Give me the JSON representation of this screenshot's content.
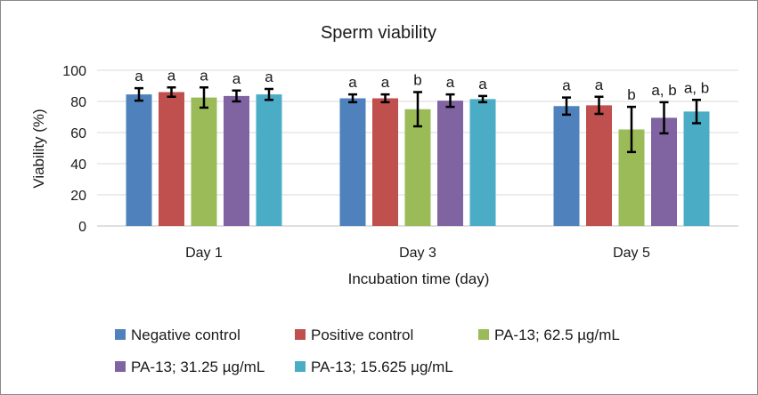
{
  "chart_data": {
    "type": "bar",
    "title": "Sperm viability",
    "xlabel": "Incubation time (day)",
    "ylabel": "Viability (%)",
    "ylim": [
      0,
      100
    ],
    "yticks": [
      0,
      20,
      40,
      60,
      80,
      100
    ],
    "grid": true,
    "legend_position": "bottom",
    "categories": [
      "Day 1",
      "Day 3",
      "Day 5"
    ],
    "series": [
      {
        "name": "Negative control",
        "color": "#4f81bd",
        "values": [
          84.5,
          82,
          77
        ],
        "errors": [
          4,
          2.5,
          5.5
        ],
        "labels": [
          "a",
          "a",
          "a"
        ]
      },
      {
        "name": "Positive control",
        "color": "#c0504d",
        "values": [
          86,
          82,
          77.5
        ],
        "errors": [
          3,
          2.5,
          5.5
        ],
        "labels": [
          "a",
          "a",
          "a"
        ]
      },
      {
        "name": "PA-13; 62.5 µg/mL",
        "color": "#9bbb59",
        "values": [
          82.5,
          75,
          62
        ],
        "errors": [
          6.5,
          11,
          14.5
        ],
        "labels": [
          "a",
          "b",
          "b"
        ]
      },
      {
        "name": "PA-13; 31.25 µg/mL",
        "color": "#8064a2",
        "values": [
          83.5,
          80.5,
          69.5
        ],
        "errors": [
          3.5,
          4,
          10
        ],
        "labels": [
          "a",
          "a",
          "a, b"
        ]
      },
      {
        "name": "PA-13; 15.625 µg/mL",
        "color": "#4bacc6",
        "values": [
          84.5,
          81.5,
          73.5
        ],
        "errors": [
          3.5,
          2,
          7.5
        ],
        "labels": [
          "a",
          "a",
          "a, b"
        ]
      }
    ]
  }
}
